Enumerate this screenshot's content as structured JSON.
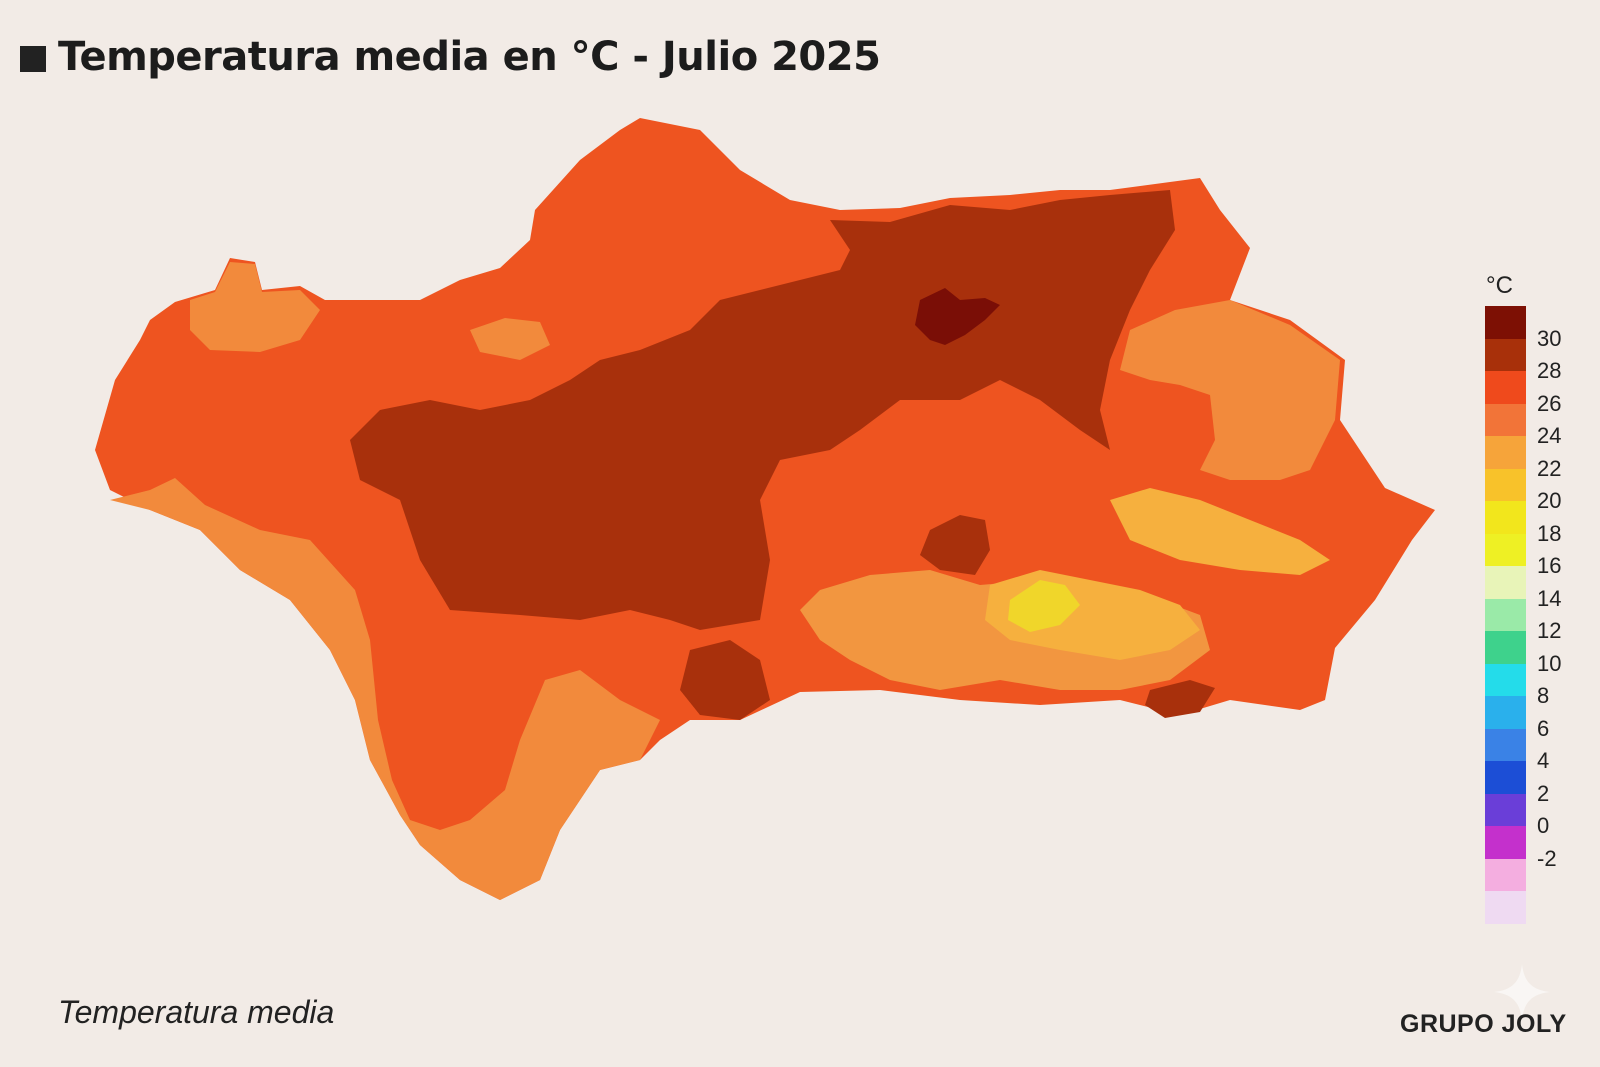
{
  "title": "Temperatura media en °C - Julio 2025",
  "caption": "Temperatura media",
  "brand": "GRUPO JOLY",
  "legend": {
    "unit": "°C",
    "ticks": [
      "30",
      "28",
      "26",
      "24",
      "22",
      "20",
      "18",
      "16",
      "14",
      "12",
      "10",
      "8",
      "6",
      "4",
      "2",
      "0",
      "-2"
    ],
    "colors": [
      "#7d1004",
      "#a8300a",
      "#ef4a1c",
      "#f27438",
      "#f6a43a",
      "#f8c22a",
      "#f2e61c",
      "#eef024",
      "#e8f4b8",
      "#9aeaa8",
      "#3ed28c",
      "#24dcea",
      "#2ab0ec",
      "#3a82e6",
      "#1c4ed6",
      "#6a3ed8",
      "#c430cc",
      "#f4aee0",
      "#efdaf2"
    ]
  },
  "map_colors": {
    "c24": "#f29640",
    "c26": "#ee5420",
    "c28": "#a8300c",
    "c30": "#7a0e06",
    "c22": "#f6b440",
    "c20": "#f0e028"
  }
}
